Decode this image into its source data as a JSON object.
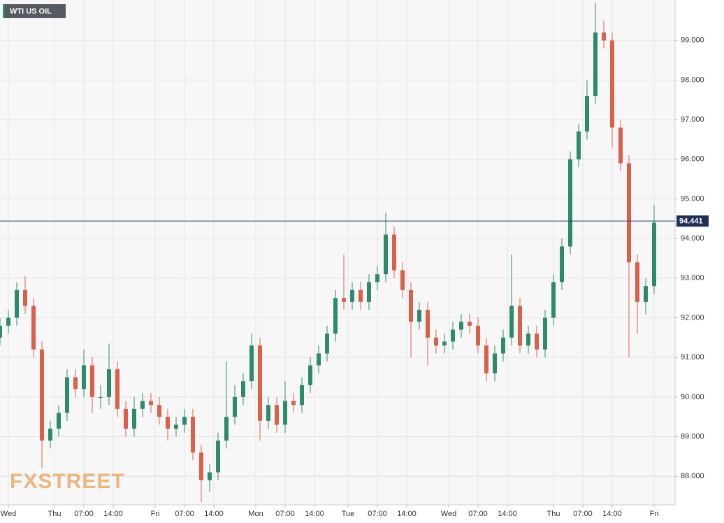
{
  "chart_data": {
    "type": "candlestick",
    "title": "WTI US OIL",
    "watermark": "FXSTREET",
    "up_color": "#2f8a6c",
    "down_color": "#d9604b",
    "grid": true,
    "x": [
      0,
      2,
      4,
      6,
      8,
      10,
      12,
      14,
      16,
      18,
      20,
      22,
      24,
      26,
      28,
      30,
      32,
      34,
      36,
      38,
      40,
      42,
      44,
      46,
      48,
      50,
      52,
      54,
      56,
      58,
      60,
      62,
      64,
      66,
      68,
      70,
      72,
      74,
      76,
      78,
      80,
      82,
      84,
      86,
      88,
      90,
      92,
      94,
      96,
      98,
      100,
      102,
      104,
      106,
      108,
      110,
      112,
      114,
      116,
      118,
      120,
      122,
      124,
      126,
      128,
      130,
      132,
      134,
      136,
      138,
      140,
      142,
      144,
      146,
      148,
      150,
      152,
      154,
      156
    ],
    "open": [
      91.5,
      91.8,
      92.0,
      92.7,
      92.3,
      91.2,
      88.9,
      89.2,
      89.6,
      90.5,
      90.2,
      90.8,
      90.0,
      90.0,
      90.7,
      89.7,
      89.2,
      89.7,
      89.9,
      89.8,
      89.5,
      89.2,
      89.3,
      89.5,
      88.6,
      87.9,
      88.1,
      88.9,
      89.5,
      90.0,
      90.4,
      91.3,
      89.4,
      89.8,
      89.3,
      89.9,
      89.8,
      90.3,
      90.8,
      91.1,
      91.6,
      92.5,
      92.4,
      92.7,
      92.4,
      92.9,
      93.1,
      94.1,
      93.2,
      92.7,
      91.9,
      92.2,
      91.5,
      91.3,
      91.4,
      91.7,
      91.9,
      91.8,
      91.3,
      90.6,
      91.1,
      91.5,
      92.3,
      91.3,
      91.6,
      91.2,
      92.0,
      92.9,
      93.8,
      96.0,
      96.7,
      97.6,
      99.2,
      99.0,
      96.8,
      95.9,
      93.4,
      92.4,
      92.8
    ],
    "high": [
      92.0,
      92.2,
      92.9,
      93.05,
      92.5,
      91.4,
      89.4,
      89.8,
      90.7,
      90.7,
      91.2,
      91.0,
      90.3,
      91.35,
      90.9,
      89.9,
      90.0,
      90.1,
      90.1,
      90.0,
      89.7,
      89.5,
      89.7,
      89.7,
      88.8,
      88.3,
      89.1,
      90.9,
      90.3,
      90.6,
      91.6,
      91.5,
      90.0,
      90.0,
      90.4,
      90.1,
      90.5,
      91.0,
      91.3,
      91.8,
      92.7,
      93.6,
      92.9,
      92.9,
      93.1,
      93.3,
      94.65,
      94.3,
      93.4,
      92.9,
      92.4,
      92.4,
      91.7,
      91.6,
      91.9,
      92.1,
      92.1,
      92.0,
      91.5,
      91.3,
      91.7,
      93.6,
      92.5,
      91.8,
      91.8,
      92.2,
      93.1,
      94.0,
      96.2,
      96.9,
      98.0,
      99.95,
      99.5,
      99.2,
      97.0,
      96.1,
      93.6,
      93.0,
      94.85
    ],
    "low": [
      91.3,
      91.6,
      91.8,
      92.1,
      91.0,
      88.2,
      88.7,
      89.0,
      89.4,
      90.0,
      90.0,
      89.6,
      89.7,
      89.8,
      89.5,
      89.0,
      89.0,
      89.5,
      89.6,
      89.3,
      88.9,
      89.0,
      89.1,
      88.4,
      87.35,
      87.6,
      87.9,
      88.7,
      89.3,
      89.8,
      90.2,
      88.9,
      89.2,
      89.1,
      89.1,
      89.6,
      89.6,
      90.1,
      90.6,
      90.9,
      91.4,
      92.2,
      92.2,
      92.2,
      92.2,
      92.7,
      92.9,
      93.0,
      92.5,
      91.0,
      91.7,
      90.8,
      91.1,
      91.1,
      91.2,
      91.5,
      91.6,
      91.1,
      90.4,
      90.4,
      90.9,
      91.3,
      91.1,
      91.1,
      91.0,
      91.0,
      91.8,
      92.7,
      93.6,
      95.8,
      96.5,
      97.4,
      98.8,
      96.3,
      95.7,
      91.0,
      91.6,
      92.1,
      92.6
    ],
    "close": [
      91.8,
      92.0,
      92.7,
      92.3,
      91.2,
      88.9,
      89.2,
      89.6,
      90.5,
      90.2,
      90.8,
      90.0,
      90.0,
      90.7,
      89.7,
      89.2,
      89.7,
      89.9,
      89.8,
      89.5,
      89.2,
      89.3,
      89.5,
      88.6,
      87.9,
      88.1,
      88.9,
      89.5,
      90.0,
      90.4,
      91.3,
      89.4,
      89.8,
      89.3,
      89.9,
      89.8,
      90.3,
      90.8,
      91.1,
      91.6,
      92.5,
      92.4,
      92.7,
      92.4,
      92.9,
      93.1,
      94.1,
      93.2,
      92.7,
      91.9,
      92.2,
      91.5,
      91.3,
      91.4,
      91.7,
      91.9,
      91.8,
      91.3,
      90.6,
      91.1,
      91.5,
      92.3,
      91.3,
      91.6,
      91.2,
      92.0,
      92.9,
      93.8,
      96.0,
      96.7,
      97.6,
      99.2,
      99.0,
      96.8,
      95.9,
      93.4,
      92.4,
      92.8,
      94.4
    ],
    "xlim": [
      0,
      161
    ],
    "xticks": [
      {
        "value": 2,
        "label": "Wed"
      },
      {
        "value": 13,
        "label": "Thu"
      },
      {
        "value": 20,
        "label": "07:00"
      },
      {
        "value": 27,
        "label": "14:00"
      },
      {
        "value": 37,
        "label": "Fri"
      },
      {
        "value": 44,
        "label": "07:00"
      },
      {
        "value": 51,
        "label": "14:00"
      },
      {
        "value": 61,
        "label": "Mon"
      },
      {
        "value": 68,
        "label": "07:00"
      },
      {
        "value": 75,
        "label": "14:00"
      },
      {
        "value": 83,
        "label": "Tue"
      },
      {
        "value": 90,
        "label": "07:00"
      },
      {
        "value": 97,
        "label": "14:00"
      },
      {
        "value": 107,
        "label": "Wed"
      },
      {
        "value": 114,
        "label": "07:00"
      },
      {
        "value": 121,
        "label": "14:00"
      },
      {
        "value": 132,
        "label": "Thu"
      },
      {
        "value": 139,
        "label": "07:00"
      },
      {
        "value": 146,
        "label": "14:00"
      },
      {
        "value": 156,
        "label": "Fri"
      }
    ],
    "ylim": [
      87.28,
      100.02
    ],
    "yticks": [
      {
        "value": 88,
        "label": "88.000"
      },
      {
        "value": 89,
        "label": "89.000"
      },
      {
        "value": 90,
        "label": "90.000"
      },
      {
        "value": 91,
        "label": "91.000"
      },
      {
        "value": 92,
        "label": "92.000"
      },
      {
        "value": 93,
        "label": "93.000"
      },
      {
        "value": 94,
        "label": "94.000"
      },
      {
        "value": 95,
        "label": "95.000"
      },
      {
        "value": 96,
        "label": "96.000"
      },
      {
        "value": 97,
        "label": "97.000"
      },
      {
        "value": 98,
        "label": "98.000"
      },
      {
        "value": 99,
        "label": "99.000"
      }
    ],
    "last_price": {
      "value": 94.441,
      "label": "94.441"
    }
  }
}
